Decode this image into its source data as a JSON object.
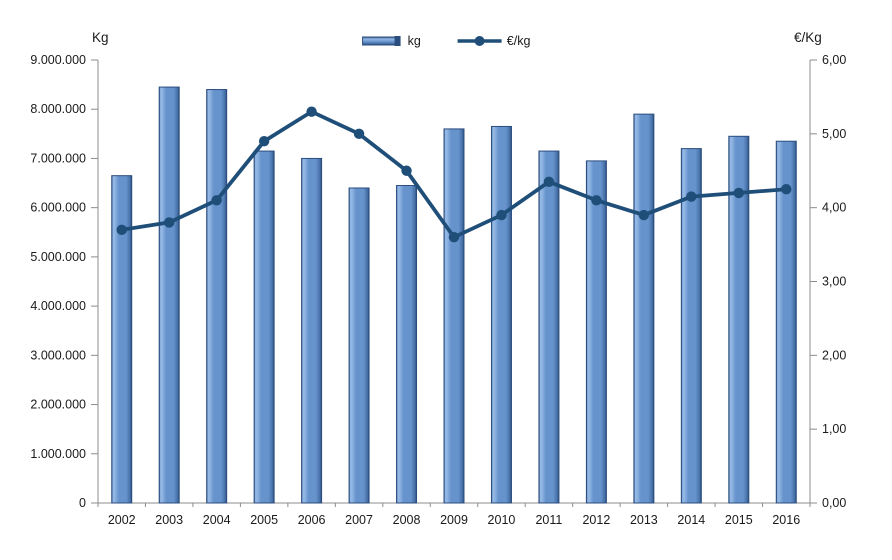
{
  "chart_data": {
    "type": "bar",
    "subtype": "combo-bar-line-dual-axis",
    "categories": [
      "2002",
      "2003",
      "2004",
      "2005",
      "2006",
      "2007",
      "2008",
      "2009",
      "2010",
      "2011",
      "2012",
      "2013",
      "2014",
      "2015",
      "2016"
    ],
    "series": [
      {
        "name": "kg",
        "type": "bar",
        "axis": "left",
        "values": [
          6650000,
          8450000,
          8400000,
          7150000,
          7000000,
          6400000,
          6450000,
          7600000,
          7650000,
          7150000,
          6950000,
          7900000,
          7200000,
          7450000,
          7350000
        ]
      },
      {
        "name": "€/kg",
        "type": "line",
        "axis": "right",
        "values": [
          3.7,
          3.8,
          4.1,
          4.9,
          5.3,
          5.0,
          4.5,
          3.6,
          3.9,
          4.35,
          4.1,
          3.9,
          4.15,
          4.2,
          4.25
        ]
      }
    ],
    "left_axis": {
      "title": "Kg",
      "min": 0,
      "max": 9000000,
      "step": 1000000,
      "tick_labels": [
        "0",
        "1.000.000",
        "2.000.000",
        "3.000.000",
        "4.000.000",
        "5.000.000",
        "6.000.000",
        "7.000.000",
        "8.000.000",
        "9.000.000"
      ]
    },
    "right_axis": {
      "title": "€/Kg",
      "min": 0,
      "max": 6,
      "step": 1,
      "tick_labels": [
        "0,00",
        "1,00",
        "2,00",
        "3,00",
        "4,00",
        "5,00",
        "6,00"
      ]
    },
    "legend": {
      "position": "top-center",
      "entries": [
        "kg",
        "€/kg"
      ]
    },
    "grid": false,
    "background": "#ffffff",
    "style": {
      "bar_fill_mid": "#6693cc",
      "bar_fill_light": "#93b7e4",
      "bar_fill_dark": "#2c5184",
      "bar_edge": "#2b4d7e",
      "line_color": "#1f4e79",
      "axis_color": "#8c8c8c",
      "text_color": "#1a1a1a"
    }
  }
}
